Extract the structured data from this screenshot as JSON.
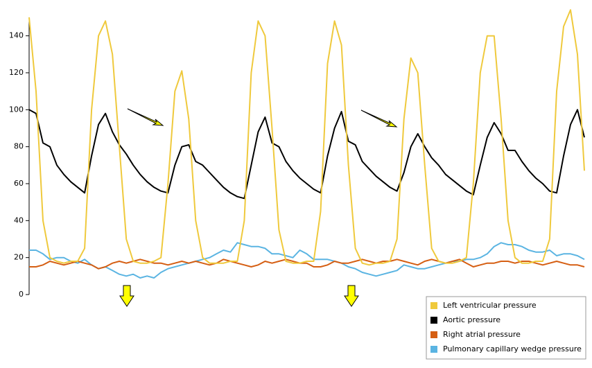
{
  "chart_data": {
    "type": "line",
    "ylim": [
      0,
      150
    ],
    "yticks": [
      0,
      20,
      40,
      60,
      80,
      100,
      120,
      140
    ],
    "legend": "lower right",
    "series": [
      {
        "name": "Left ventricular pressure",
        "color": "#efc93c",
        "values": [
          150,
          110,
          40,
          20,
          18,
          17,
          18,
          18,
          25,
          100,
          140,
          148,
          130,
          80,
          30,
          18,
          17,
          17,
          18,
          20,
          60,
          110,
          121,
          95,
          40,
          20,
          17,
          17,
          17,
          18,
          18,
          40,
          120,
          148,
          140,
          90,
          35,
          18,
          17,
          17,
          18,
          18,
          45,
          125,
          148,
          135,
          70,
          25,
          17,
          16,
          17,
          17,
          18,
          30,
          95,
          128,
          120,
          70,
          25,
          18,
          17,
          17,
          18,
          20,
          60,
          120,
          140,
          140,
          95,
          40,
          20,
          17,
          17,
          18,
          18,
          30,
          110,
          145,
          154,
          130,
          67
        ]
      },
      {
        "name": "Aortic pressure",
        "color": "#000000",
        "values": [
          100,
          98,
          82,
          80,
          70,
          65,
          61,
          58,
          55,
          75,
          92,
          98,
          88,
          81,
          76,
          70,
          65,
          61,
          58,
          56,
          55,
          70,
          80,
          81,
          72,
          70,
          66,
          62,
          58,
          55,
          53,
          52,
          70,
          88,
          96,
          82,
          80,
          72,
          67,
          63,
          60,
          57,
          55,
          75,
          90,
          99,
          83,
          81,
          72,
          68,
          64,
          61,
          58,
          56,
          66,
          80,
          87,
          80,
          74,
          70,
          65,
          62,
          59,
          56,
          54,
          70,
          85,
          93,
          87,
          78,
          78,
          72,
          67,
          63,
          60,
          56,
          55,
          75,
          92,
          100,
          85
        ]
      },
      {
        "name": "Right atrial pressure",
        "color": "#d55e12",
        "values": [
          15,
          15,
          16,
          18,
          17,
          16,
          17,
          18,
          17,
          16,
          14,
          15,
          17,
          18,
          17,
          18,
          19,
          18,
          17,
          17,
          16,
          17,
          18,
          17,
          18,
          17,
          16,
          17,
          19,
          18,
          17,
          16,
          15,
          16,
          18,
          17,
          18,
          19,
          18,
          17,
          17,
          15,
          15,
          16,
          18,
          17,
          17,
          18,
          19,
          18,
          17,
          18,
          18,
          19,
          18,
          17,
          16,
          18,
          19,
          18,
          17,
          18,
          19,
          17,
          15,
          16,
          17,
          17,
          18,
          18,
          17,
          18,
          18,
          17,
          16,
          17,
          18,
          17,
          16,
          16,
          15
        ]
      },
      {
        "name": "Pulmonary capillary wedge pressure",
        "color": "#5ab4e2",
        "values": [
          24,
          24,
          22,
          19,
          20,
          20,
          18,
          17,
          19,
          16,
          14,
          15,
          13,
          11,
          10,
          11,
          9,
          10,
          9,
          12,
          14,
          15,
          16,
          17,
          18,
          19,
          20,
          22,
          24,
          23,
          28,
          27,
          26,
          26,
          25,
          22,
          22,
          21,
          20,
          24,
          22,
          19,
          19,
          19,
          18,
          17,
          15,
          14,
          12,
          11,
          10,
          11,
          12,
          13,
          16,
          15,
          14,
          14,
          15,
          16,
          17,
          18,
          18,
          19,
          19,
          20,
          22,
          26,
          28,
          27,
          27,
          26,
          24,
          23,
          23,
          24,
          21,
          22,
          22,
          21,
          19
        ]
      }
    ]
  }
}
